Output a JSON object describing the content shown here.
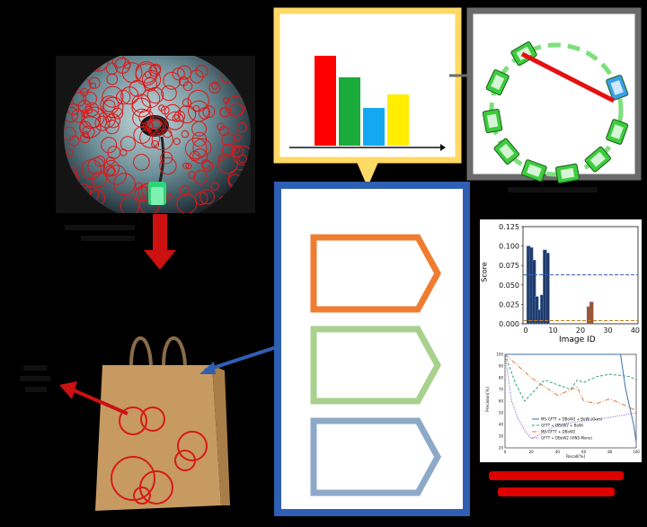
{
  "panels": {
    "bar_histogram": {
      "bars": [
        {
          "color": "#ff0000",
          "value": 1.0
        },
        {
          "color": "#1aab3a",
          "value": 0.76
        },
        {
          "color": "#14a8f0",
          "value": 0.42
        },
        {
          "color": "#ffee00",
          "value": 0.57
        }
      ]
    },
    "score_chart": {
      "ylabel": "Score",
      "xlabel": "Image ID",
      "yticks": [
        "0.000",
        "0.025",
        "0.050",
        "0.075",
        "0.100",
        "0.125"
      ],
      "xticks": [
        "0",
        "10",
        "20",
        "30",
        "40"
      ]
    },
    "pr_chart": {
      "ylabel": "Precision[%]",
      "xlabel": "Recall[%]",
      "yticks": [
        "100",
        "90",
        "80",
        "70",
        "60",
        "50",
        "40",
        "30",
        "20"
      ],
      "xticks": [
        "0",
        "20",
        "40",
        "60",
        "80",
        "100"
      ],
      "legend": [
        "MS-GFTT + DBoW2 + BoWi (Ours)",
        "GFTT + DBoW2 + BoWi",
        "MS-GFTT + DBoW2",
        "GFTT + DBoW2 (VINS-Mono)"
      ]
    }
  },
  "colors": {
    "yellow_frame": "#ffd966",
    "blue_frame": "#2f5fb3",
    "orange": "#ee7d31",
    "green": "#a8d18d",
    "steel": "#8ea9c8",
    "gray_frame": "#6b6b6b",
    "red": "#dd0000",
    "keyframe_green": "#3dcc3d",
    "keyframe_blue": "#3aa0e6"
  },
  "chart_data": [
    {
      "type": "bar",
      "ylabel": "Score",
      "xlabel": "Image ID",
      "ylim": [
        0,
        0.125
      ],
      "xlim": [
        -1,
        41
      ],
      "threshold_high": 0.063,
      "threshold_low": 0.004,
      "series": [
        {
          "name": "blue",
          "x": [
            1,
            2,
            3,
            4,
            5,
            6,
            7,
            8
          ],
          "values": [
            0.1,
            0.098,
            0.082,
            0.035,
            0.018,
            0.037,
            0.095,
            0.091
          ]
        },
        {
          "name": "brown",
          "x": [
            23,
            24
          ],
          "values": [
            0.022,
            0.028
          ]
        }
      ]
    },
    {
      "type": "line",
      "xlabel": "Recall[%]",
      "ylabel": "Precision[%]",
      "xlim": [
        0,
        100
      ],
      "ylim": [
        20,
        100
      ],
      "series": [
        {
          "name": "MS-GFTT + DBoW2 + BoWi (Ours)",
          "x": [
            0,
            10,
            40,
            60,
            88,
            92,
            98,
            100
          ],
          "values": [
            100,
            100,
            100,
            100,
            100,
            70,
            40,
            25
          ]
        },
        {
          "name": "GFTT + DBoW2 + BoWi",
          "x": [
            0,
            8,
            15,
            25,
            30,
            50,
            55,
            60,
            70,
            80,
            95,
            100
          ],
          "values": [
            100,
            75,
            60,
            72,
            78,
            70,
            78,
            76,
            81,
            83,
            81,
            78
          ]
        },
        {
          "name": "MS-GFTT + DBoW2",
          "x": [
            0,
            5,
            12,
            20,
            40,
            55,
            60,
            70,
            80,
            100
          ],
          "values": [
            100,
            95,
            88,
            80,
            65,
            72,
            60,
            58,
            62,
            52
          ]
        },
        {
          "name": "GFTT + DBoW2 (VINS-Mono)",
          "x": [
            0,
            5,
            10,
            15,
            20,
            30,
            40,
            60,
            80,
            100
          ],
          "values": [
            100,
            60,
            45,
            35,
            28,
            33,
            40,
            43,
            46,
            50
          ]
        }
      ]
    }
  ]
}
